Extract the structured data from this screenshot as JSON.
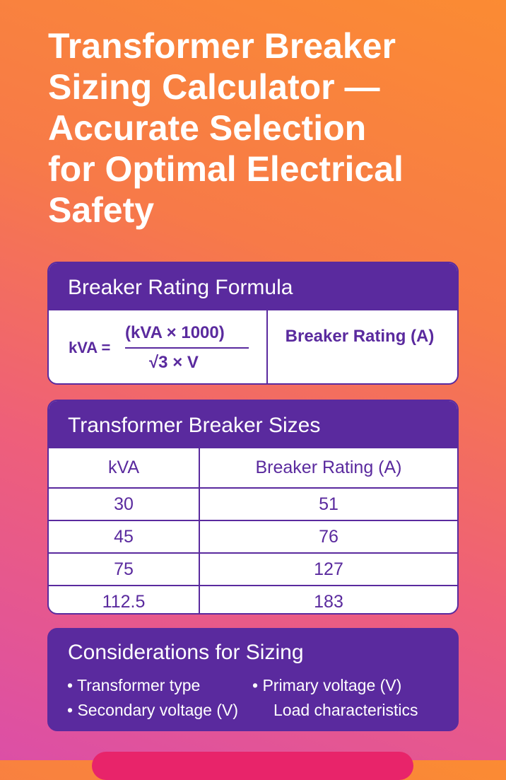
{
  "title_lines": [
    "Transformer Breaker",
    "Sizing Calculator —",
    "Accurate Selection",
    "for Optimal Electrical",
    "Safety"
  ],
  "formula_card": {
    "heading": "Breaker Rating Formula",
    "lhs": "kVA =",
    "numerator": "(kVA × 1000)",
    "denominator": "√3 × V",
    "result": "Breaker Rating (A)"
  },
  "table": {
    "heading": "Transformer Breaker Sizes",
    "columns": [
      "kVA",
      "Breaker Rating (A)"
    ],
    "rows": [
      [
        30,
        51
      ],
      [
        45,
        76
      ],
      [
        75,
        127
      ],
      [
        112.5,
        183
      ]
    ]
  },
  "considerations": {
    "heading": "Considerations for Sizing",
    "items": [
      "Transformer type",
      "Primary voltage (V)",
      "Secondary voltage (V)",
      "Load characteristics"
    ]
  }
}
